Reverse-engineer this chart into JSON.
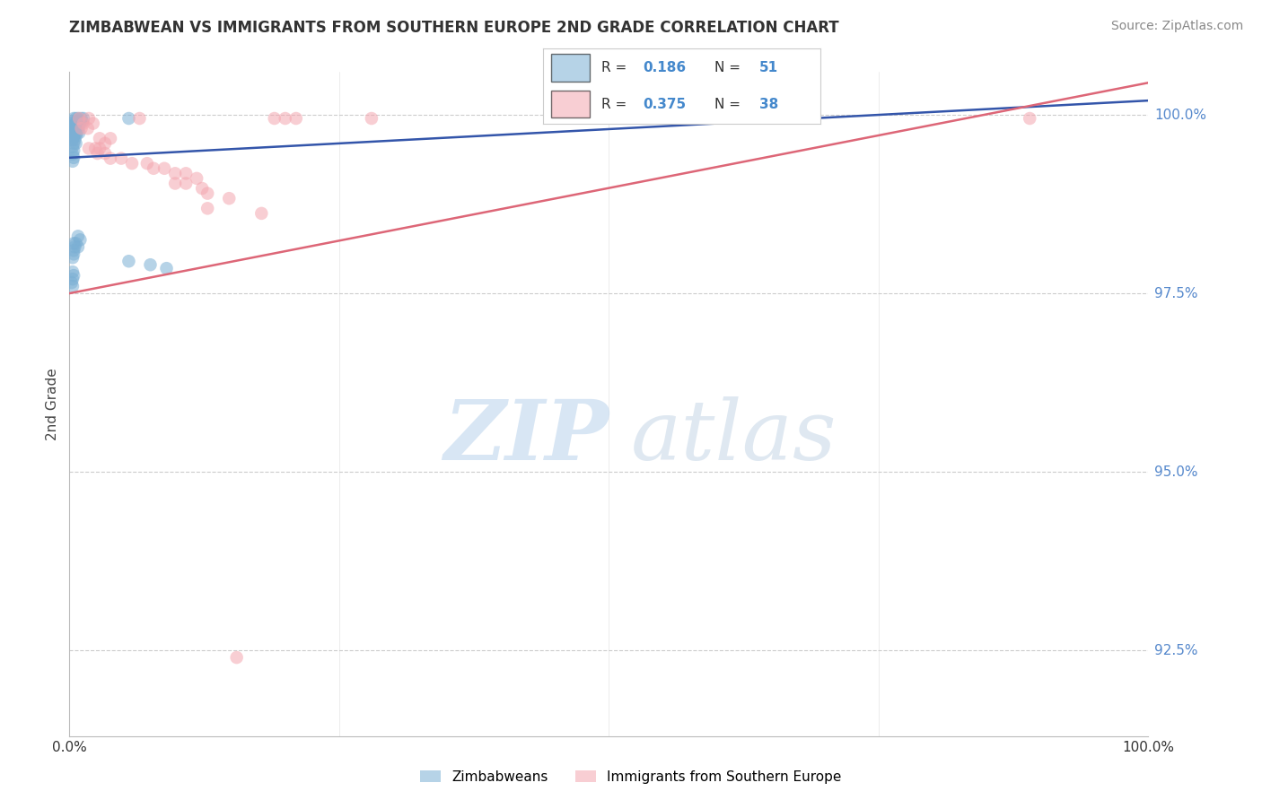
{
  "title": "ZIMBABWEAN VS IMMIGRANTS FROM SOUTHERN EUROPE 2ND GRADE CORRELATION CHART",
  "source": "Source: ZipAtlas.com",
  "ylabel": "2nd Grade",
  "xlim": [
    0.0,
    1.0
  ],
  "ylim": [
    0.913,
    1.006
  ],
  "yticks": [
    0.925,
    0.95,
    0.975,
    1.0
  ],
  "ytick_labels": [
    "92.5%",
    "95.0%",
    "97.5%",
    "100.0%"
  ],
  "blue_color": "#7BAFD4",
  "pink_color": "#F4A7B0",
  "line_blue": "#3355AA",
  "line_pink": "#DD6677",
  "blue_scatter": [
    [
      0.004,
      0.9995
    ],
    [
      0.006,
      0.9995
    ],
    [
      0.008,
      0.9995
    ],
    [
      0.011,
      0.9995
    ],
    [
      0.013,
      0.9995
    ],
    [
      0.004,
      0.999
    ],
    [
      0.006,
      0.999
    ],
    [
      0.008,
      0.999
    ],
    [
      0.01,
      0.999
    ],
    [
      0.012,
      0.999
    ],
    [
      0.003,
      0.9985
    ],
    [
      0.005,
      0.9985
    ],
    [
      0.007,
      0.9985
    ],
    [
      0.009,
      0.9985
    ],
    [
      0.004,
      0.998
    ],
    [
      0.006,
      0.998
    ],
    [
      0.008,
      0.998
    ],
    [
      0.003,
      0.9975
    ],
    [
      0.005,
      0.9975
    ],
    [
      0.007,
      0.9975
    ],
    [
      0.009,
      0.9975
    ],
    [
      0.004,
      0.997
    ],
    [
      0.006,
      0.997
    ],
    [
      0.003,
      0.9965
    ],
    [
      0.005,
      0.9965
    ],
    [
      0.004,
      0.996
    ],
    [
      0.006,
      0.996
    ],
    [
      0.003,
      0.9955
    ],
    [
      0.004,
      0.995
    ],
    [
      0.003,
      0.9945
    ],
    [
      0.004,
      0.994
    ],
    [
      0.003,
      0.9935
    ],
    [
      0.055,
      0.9995
    ],
    [
      0.008,
      0.983
    ],
    [
      0.01,
      0.9825
    ],
    [
      0.004,
      0.982
    ],
    [
      0.006,
      0.982
    ],
    [
      0.005,
      0.9815
    ],
    [
      0.008,
      0.9815
    ],
    [
      0.004,
      0.981
    ],
    [
      0.004,
      0.9805
    ],
    [
      0.003,
      0.98
    ],
    [
      0.055,
      0.9795
    ],
    [
      0.075,
      0.979
    ],
    [
      0.09,
      0.9785
    ],
    [
      0.003,
      0.978
    ],
    [
      0.004,
      0.9775
    ],
    [
      0.003,
      0.977
    ],
    [
      0.002,
      0.9765
    ],
    [
      0.003,
      0.976
    ]
  ],
  "pink_scatter": [
    [
      0.009,
      0.9995
    ],
    [
      0.018,
      0.9995
    ],
    [
      0.065,
      0.9995
    ],
    [
      0.19,
      0.9995
    ],
    [
      0.2,
      0.9995
    ],
    [
      0.21,
      0.9995
    ],
    [
      0.28,
      0.9995
    ],
    [
      0.89,
      0.9995
    ],
    [
      0.013,
      0.9988
    ],
    [
      0.022,
      0.9988
    ],
    [
      0.011,
      0.9981
    ],
    [
      0.017,
      0.9981
    ],
    [
      0.028,
      0.9967
    ],
    [
      0.038,
      0.9967
    ],
    [
      0.033,
      0.996
    ],
    [
      0.018,
      0.9953
    ],
    [
      0.024,
      0.9953
    ],
    [
      0.028,
      0.9953
    ],
    [
      0.026,
      0.9946
    ],
    [
      0.033,
      0.9946
    ],
    [
      0.038,
      0.9939
    ],
    [
      0.048,
      0.9939
    ],
    [
      0.058,
      0.9932
    ],
    [
      0.072,
      0.9932
    ],
    [
      0.078,
      0.9925
    ],
    [
      0.088,
      0.9925
    ],
    [
      0.098,
      0.9918
    ],
    [
      0.108,
      0.9918
    ],
    [
      0.118,
      0.9911
    ],
    [
      0.098,
      0.9904
    ],
    [
      0.108,
      0.9904
    ],
    [
      0.123,
      0.9897
    ],
    [
      0.128,
      0.989
    ],
    [
      0.148,
      0.9883
    ],
    [
      0.128,
      0.9869
    ],
    [
      0.178,
      0.9862
    ],
    [
      0.155,
      0.924
    ]
  ],
  "blue_trendline_x": [
    0.0,
    1.0
  ],
  "blue_trendline_y": [
    0.994,
    1.002
  ],
  "pink_trendline_x": [
    0.0,
    1.0
  ],
  "pink_trendline_y": [
    0.975,
    1.0045
  ]
}
